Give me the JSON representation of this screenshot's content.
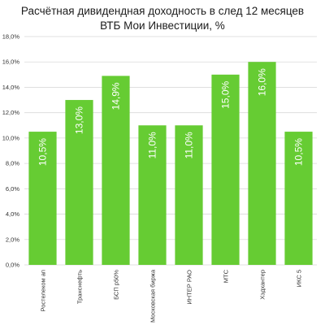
{
  "chart_data": {
    "type": "bar",
    "title_line1": "Расчётная дивидендная доходность в след 12 месяцев",
    "title_line2": "ВТБ Мои Инвестиции, %",
    "categories": [
      "Ростелеком ап",
      "Транснефть",
      "БСП р50%",
      "Московская биржа",
      "ИНТЕР РАО",
      "МТС",
      "Хэдхантер",
      "ИКС 5"
    ],
    "values": [
      10.5,
      13.0,
      14.9,
      11.0,
      11.0,
      15.0,
      16.0,
      10.5
    ],
    "data_labels": [
      "10,5%",
      "13,0%",
      "14,9%",
      "11,0%",
      "11,0%",
      "15,0%",
      "16,0%",
      "10,5%"
    ],
    "y_ticks": [
      "0,0%",
      "2,0%",
      "4,0%",
      "6,0%",
      "8,0%",
      "10,0%",
      "12,0%",
      "14,0%",
      "16,0%",
      "18,0%"
    ],
    "ylim": [
      0,
      18
    ],
    "grid": true,
    "bar_color": "#66cc33"
  }
}
